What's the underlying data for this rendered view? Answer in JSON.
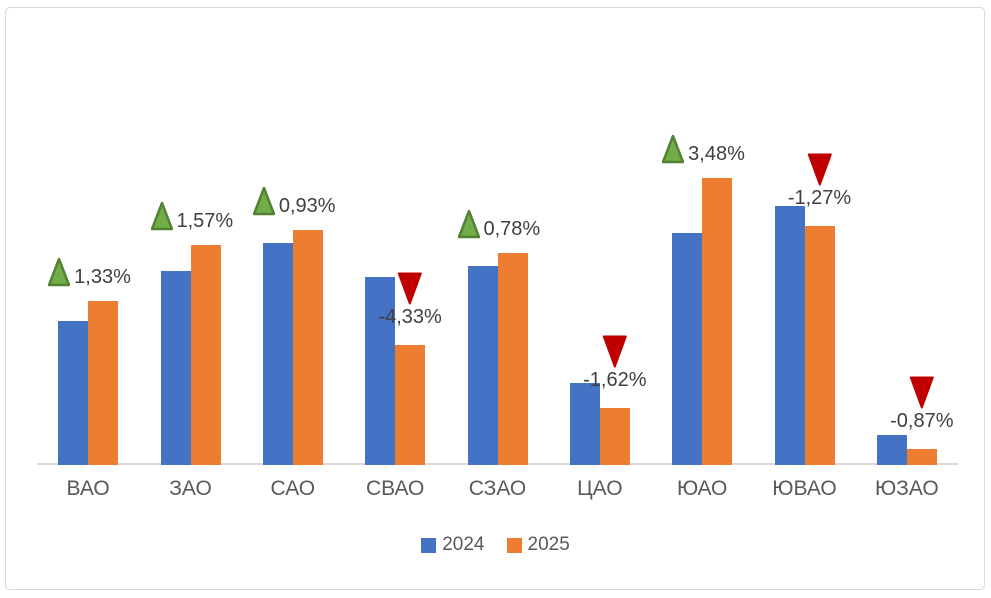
{
  "chart_data": {
    "type": "bar",
    "title": "",
    "categories": [
      "ВАО",
      "ЗАО",
      "САО",
      "СВАО",
      "СЗАО",
      "ЦАО",
      "ЮАО",
      "ЮВАО",
      "ЮЗАО"
    ],
    "series": [
      {
        "name": "2024",
        "color": "#4472C4",
        "values": [
          144,
          194,
          222,
          188,
          199,
          82,
          232,
          259,
          30
        ]
      },
      {
        "name": "2025",
        "color": "#ED7D31",
        "values": [
          164,
          220,
          235,
          120,
          212,
          57,
          287,
          239,
          16
        ]
      }
    ],
    "annotations": [
      {
        "category": "ВАО",
        "label": "1,33%",
        "direction": "up"
      },
      {
        "category": "ЗАО",
        "label": "1,57%",
        "direction": "up"
      },
      {
        "category": "САО",
        "label": "0,93%",
        "direction": "up"
      },
      {
        "category": "СВАО",
        "label": "-4,33%",
        "direction": "down"
      },
      {
        "category": "СЗАО",
        "label": "0,78%",
        "direction": "up"
      },
      {
        "category": "ЦАО",
        "label": "-1,62%",
        "direction": "down"
      },
      {
        "category": "ЮАО",
        "label": "3,48%",
        "direction": "up"
      },
      {
        "category": "ЮВАО",
        "label": "-1,27%",
        "direction": "down"
      },
      {
        "category": "ЮЗАО",
        "label": "-0,87%",
        "direction": "down"
      }
    ],
    "legend": {
      "position": "bottom",
      "entries": [
        "2024",
        "2025"
      ]
    },
    "value_axis_visible": false,
    "values_unit": "relative bar height, estimated from pixels (no value axis shown)",
    "grid": false
  },
  "colors": {
    "series_2024": "#4472C4",
    "series_2025": "#ED7D31",
    "up_triangle_fill": "#70AD47",
    "up_triangle_border": "#548235",
    "down_triangle_fill": "#C00000",
    "axis_line": "#D9D9D9",
    "frame_border": "#D9D9D9",
    "annotation_text": "#404040",
    "axis_text": "#595959",
    "background": "#FFFFFF"
  }
}
